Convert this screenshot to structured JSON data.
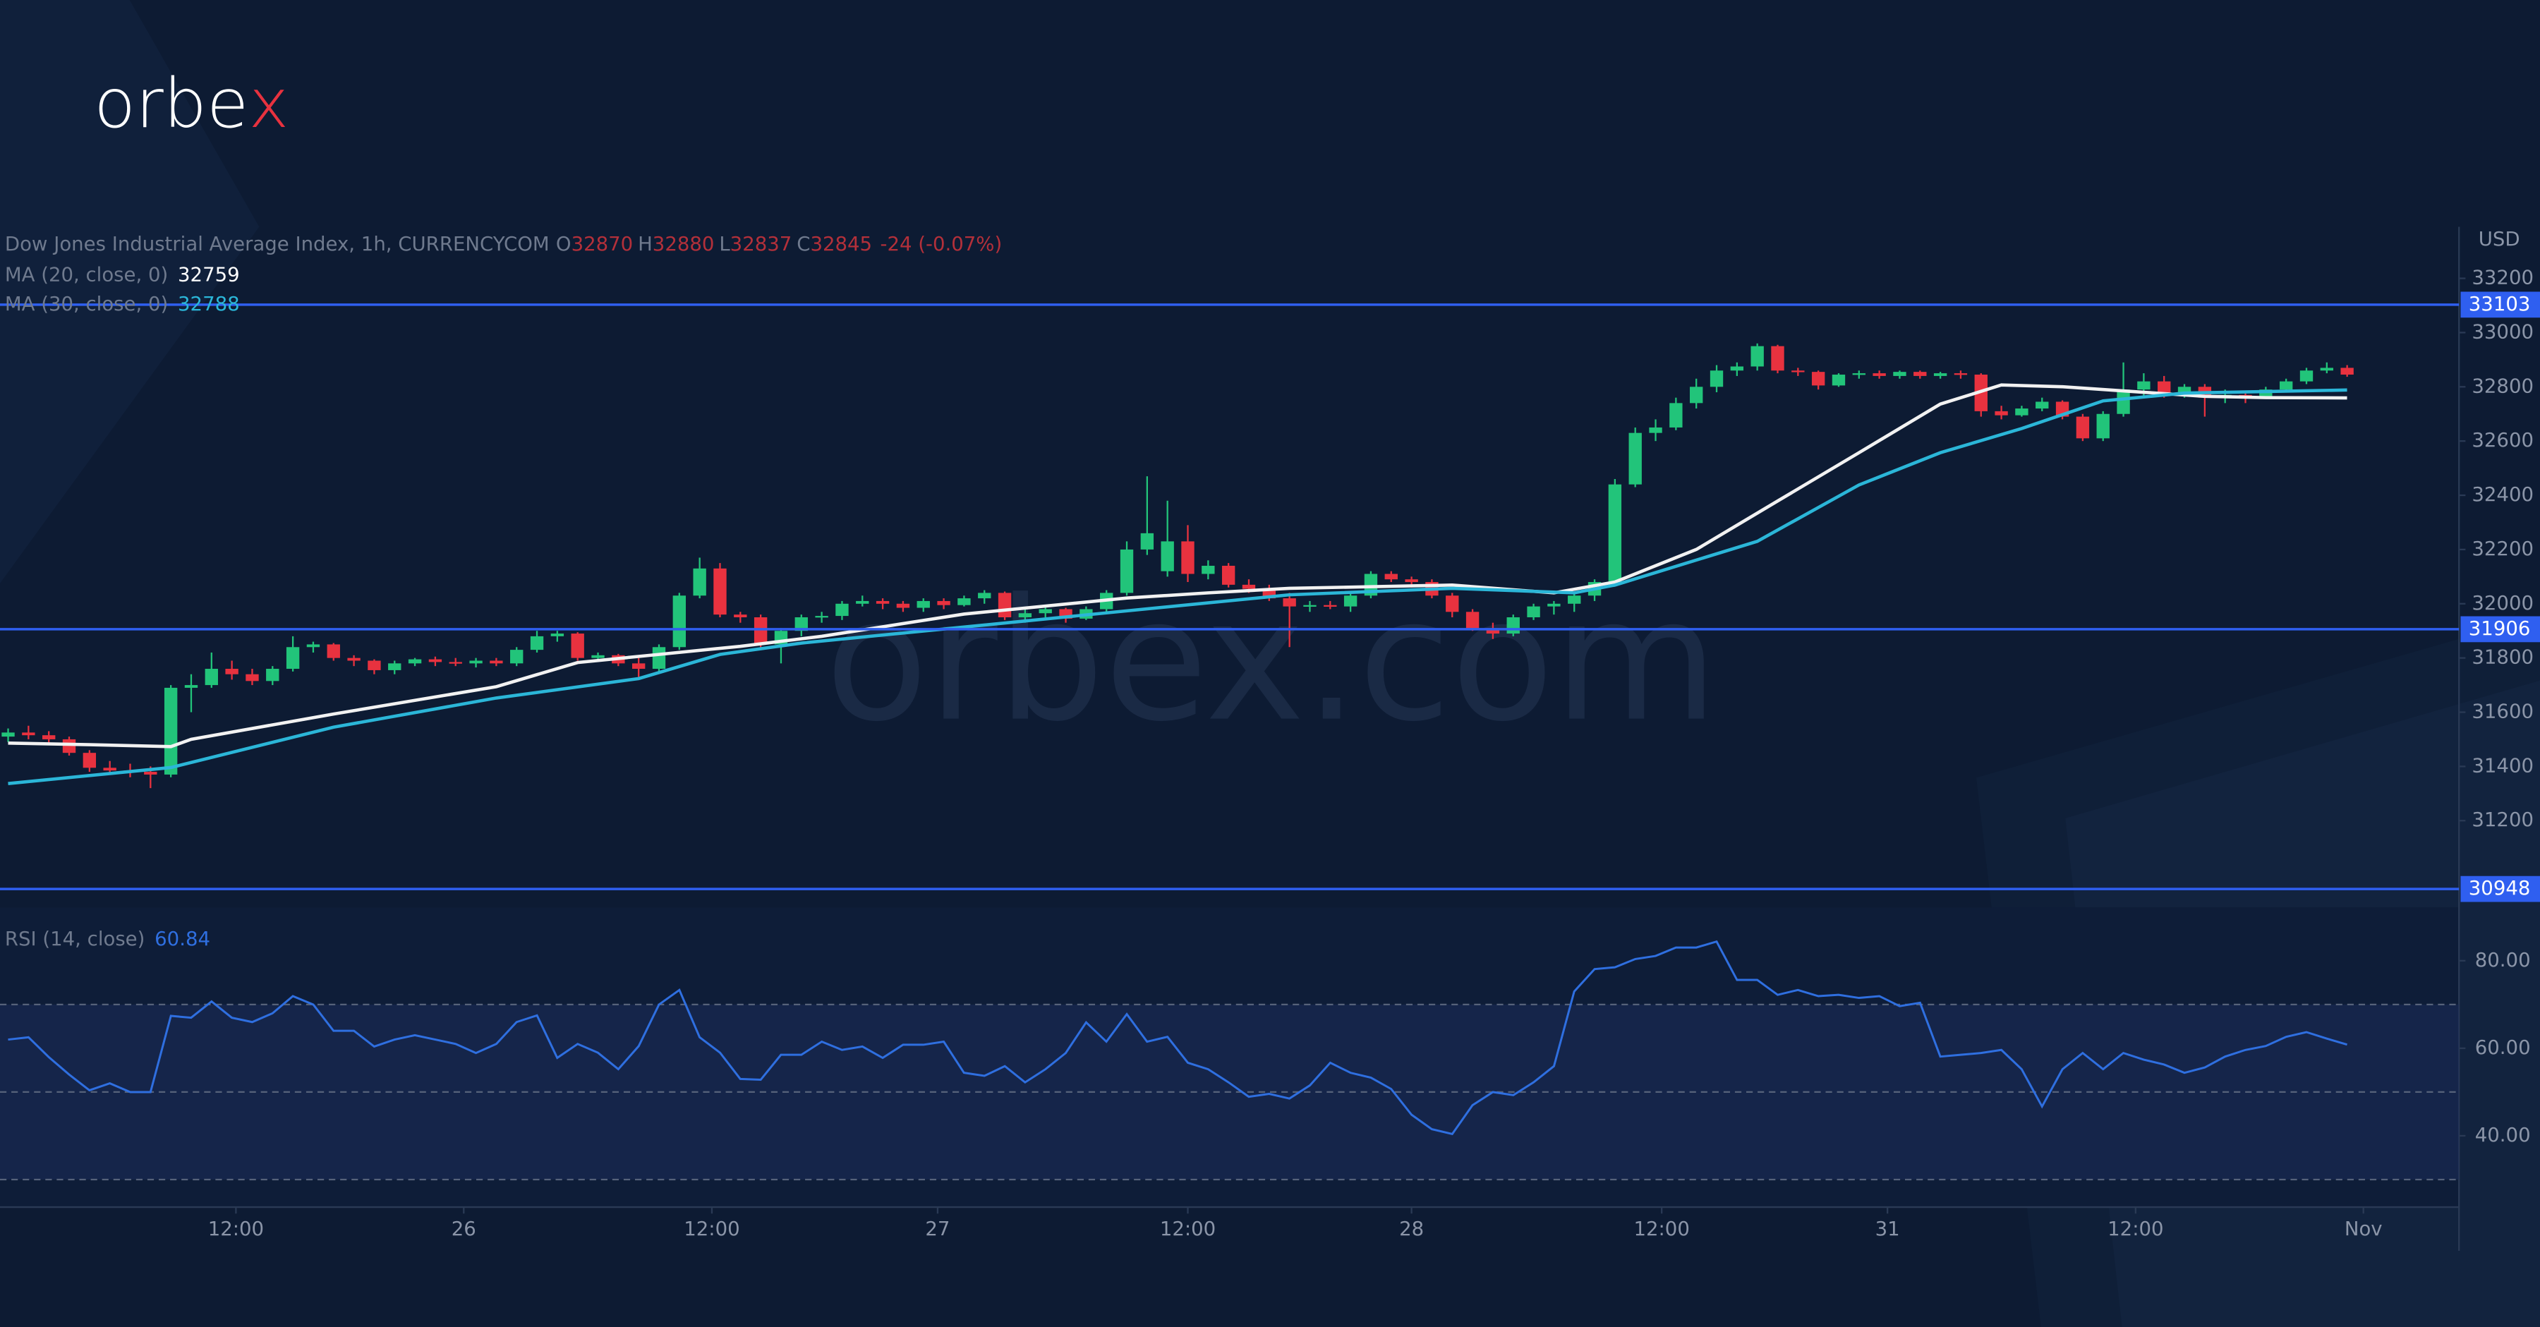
{
  "logo": {
    "text": "orbe",
    "accent": "x"
  },
  "watermark": "orbex.com",
  "chart_data": {
    "type": "candlestick",
    "title": "Dow Jones Industrial Average Index, 1h, CURRENCYCOM",
    "legend_keys": [
      "O",
      "H",
      "L",
      "C"
    ],
    "change": "-24 (-0.07%)",
    "currency": "USD",
    "up_color": "#22c47a",
    "down_color": "#e8323f",
    "xlim": [
      -0.4,
      120.5
    ],
    "xticks": [
      {
        "value": 11.2,
        "label": "12:00"
      },
      {
        "value": 22.4,
        "label": "26"
      },
      {
        "value": 34.6,
        "label": "12:00"
      },
      {
        "value": 45.7,
        "label": "27"
      },
      {
        "value": 58,
        "label": "12:00"
      },
      {
        "value": 69,
        "label": "28"
      },
      {
        "value": 81.3,
        "label": "12:00"
      },
      {
        "value": 92.4,
        "label": "31"
      },
      {
        "value": 104.6,
        "label": "12:00"
      },
      {
        "value": 115.8,
        "label": "Nov"
      }
    ],
    "ylim": [
      30940,
      33390
    ],
    "yticks": [
      31200,
      31400,
      31600,
      31800,
      32000,
      32200,
      32400,
      32600,
      32800,
      33000,
      33200
    ],
    "levels": [
      33103,
      31906,
      30948
    ],
    "level_color": "#2f5ff0",
    "ohlc": [
      [
        31510,
        31540,
        31490,
        31525
      ],
      [
        31525,
        31550,
        31500,
        31515
      ],
      [
        31515,
        31530,
        31480,
        31500
      ],
      [
        31500,
        31510,
        31440,
        31450
      ],
      [
        31450,
        31460,
        31380,
        31395
      ],
      [
        31395,
        31420,
        31370,
        31385
      ],
      [
        31385,
        31410,
        31360,
        31380
      ],
      [
        31380,
        31400,
        31320,
        31370
      ],
      [
        31370,
        31700,
        31360,
        31690
      ],
      [
        31690,
        31740,
        31600,
        31700
      ],
      [
        31700,
        31820,
        31690,
        31760
      ],
      [
        31760,
        31790,
        31720,
        31740
      ],
      [
        31740,
        31760,
        31700,
        31715
      ],
      [
        31715,
        31770,
        31700,
        31760
      ],
      [
        31760,
        31880,
        31750,
        31840
      ],
      [
        31840,
        31860,
        31820,
        31850
      ],
      [
        31850,
        31855,
        31790,
        31800
      ],
      [
        31800,
        31810,
        31770,
        31790
      ],
      [
        31790,
        31795,
        31740,
        31755
      ],
      [
        31755,
        31790,
        31740,
        31780
      ],
      [
        31780,
        31800,
        31770,
        31795
      ],
      [
        31795,
        31805,
        31770,
        31785
      ],
      [
        31785,
        31800,
        31770,
        31780
      ],
      [
        31780,
        31800,
        31765,
        31790
      ],
      [
        31790,
        31800,
        31770,
        31780
      ],
      [
        31780,
        31840,
        31770,
        31830
      ],
      [
        31830,
        31900,
        31820,
        31880
      ],
      [
        31880,
        31900,
        31860,
        31890
      ],
      [
        31890,
        31895,
        31790,
        31800
      ],
      [
        31800,
        31820,
        31790,
        31810
      ],
      [
        31810,
        31815,
        31770,
        31780
      ],
      [
        31780,
        31800,
        31730,
        31760
      ],
      [
        31760,
        31850,
        31750,
        31840
      ],
      [
        31840,
        32040,
        31830,
        32030
      ],
      [
        32030,
        32170,
        32020,
        32130
      ],
      [
        32130,
        32150,
        31950,
        31960
      ],
      [
        31960,
        31970,
        31930,
        31950
      ],
      [
        31950,
        31960,
        31830,
        31850
      ],
      [
        31850,
        31910,
        31780,
        31900
      ],
      [
        31900,
        31960,
        31880,
        31950
      ],
      [
        31950,
        31970,
        31930,
        31955
      ],
      [
        31955,
        32010,
        31940,
        32000
      ],
      [
        32000,
        32030,
        31990,
        32010
      ],
      [
        32010,
        32020,
        31980,
        32000
      ],
      [
        32000,
        32010,
        31970,
        31985
      ],
      [
        31985,
        32020,
        31970,
        32010
      ],
      [
        32010,
        32020,
        31980,
        31995
      ],
      [
        31995,
        32030,
        31990,
        32020
      ],
      [
        32020,
        32050,
        32000,
        32040
      ],
      [
        32040,
        32045,
        31940,
        31950
      ],
      [
        31950,
        31980,
        31930,
        31965
      ],
      [
        31965,
        31990,
        31950,
        31980
      ],
      [
        31980,
        31985,
        31930,
        31945
      ],
      [
        31945,
        31990,
        31940,
        31980
      ],
      [
        31980,
        32050,
        31970,
        32040
      ],
      [
        32040,
        32230,
        32030,
        32200
      ],
      [
        32200,
        32470,
        32180,
        32260
      ],
      [
        32120,
        32380,
        32100,
        32230
      ],
      [
        32230,
        32290,
        32080,
        32110
      ],
      [
        32110,
        32160,
        32090,
        32140
      ],
      [
        32140,
        32150,
        32060,
        32070
      ],
      [
        32070,
        32090,
        32040,
        32055
      ],
      [
        32055,
        32070,
        32010,
        32020
      ],
      [
        32020,
        32040,
        31840,
        31990
      ],
      [
        31990,
        32010,
        31970,
        31995
      ],
      [
        31995,
        32010,
        31980,
        31990
      ],
      [
        31990,
        32040,
        31970,
        32030
      ],
      [
        32030,
        32120,
        32020,
        32110
      ],
      [
        32110,
        32120,
        32080,
        32090
      ],
      [
        32090,
        32100,
        32060,
        32080
      ],
      [
        32080,
        32090,
        32020,
        32030
      ],
      [
        32030,
        32040,
        31950,
        31970
      ],
      [
        31970,
        31980,
        31900,
        31910
      ],
      [
        31910,
        31930,
        31870,
        31890
      ],
      [
        31890,
        31960,
        31880,
        31950
      ],
      [
        31950,
        32000,
        31940,
        31990
      ],
      [
        31990,
        32010,
        31960,
        32000
      ],
      [
        32000,
        32040,
        31970,
        32030
      ],
      [
        32030,
        32090,
        32010,
        32080
      ],
      [
        32080,
        32460,
        32070,
        32440
      ],
      [
        32440,
        32650,
        32430,
        32630
      ],
      [
        32630,
        32680,
        32600,
        32650
      ],
      [
        32650,
        32760,
        32640,
        32740
      ],
      [
        32740,
        32830,
        32720,
        32800
      ],
      [
        32800,
        32880,
        32780,
        32860
      ],
      [
        32860,
        32890,
        32840,
        32875
      ],
      [
        32875,
        32960,
        32860,
        32950
      ],
      [
        32950,
        32955,
        32850,
        32860
      ],
      [
        32860,
        32870,
        32840,
        32855
      ],
      [
        32855,
        32860,
        32790,
        32805
      ],
      [
        32805,
        32850,
        32800,
        32845
      ],
      [
        32845,
        32860,
        32830,
        32850
      ],
      [
        32850,
        32860,
        32830,
        32840
      ],
      [
        32840,
        32860,
        32830,
        32855
      ],
      [
        32855,
        32860,
        32830,
        32840
      ],
      [
        32840,
        32855,
        32830,
        32850
      ],
      [
        32850,
        32860,
        32830,
        32845
      ],
      [
        32845,
        32850,
        32690,
        32710
      ],
      [
        32710,
        32730,
        32680,
        32695
      ],
      [
        32695,
        32730,
        32690,
        32720
      ],
      [
        32720,
        32760,
        32710,
        32745
      ],
      [
        32745,
        32750,
        32680,
        32690
      ],
      [
        32690,
        32700,
        32600,
        32610
      ],
      [
        32610,
        32710,
        32600,
        32700
      ],
      [
        32700,
        32890,
        32690,
        32790
      ],
      [
        32790,
        32850,
        32760,
        32820
      ],
      [
        32820,
        32840,
        32760,
        32770
      ],
      [
        32770,
        32810,
        32760,
        32800
      ],
      [
        32800,
        32810,
        32690,
        32760
      ],
      [
        32760,
        32790,
        32740,
        32770
      ],
      [
        32770,
        32780,
        32740,
        32765
      ],
      [
        32765,
        32800,
        32760,
        32790
      ],
      [
        32790,
        32830,
        32780,
        32820
      ],
      [
        32820,
        32870,
        32810,
        32860
      ],
      [
        32860,
        32890,
        32850,
        32870
      ],
      [
        32870,
        32880,
        32837,
        32845
      ]
    ],
    "ma": [
      {
        "name": "MA (20, close, 0)",
        "color": "#f2f2f2",
        "x": [
          0,
          4,
          8,
          9,
          16,
          24,
          28,
          32,
          36,
          40,
          47,
          55,
          59,
          63,
          71,
          76,
          79,
          83,
          87,
          91,
          95,
          98,
          101,
          105,
          108,
          111,
          115
        ],
        "values": [
          31486,
          31480,
          31473,
          31500,
          31593,
          31694,
          31783,
          31813,
          31843,
          31880,
          31962,
          32021,
          32040,
          32057,
          32069,
          32040,
          32080,
          32200,
          32379,
          32557,
          32736,
          32807,
          32800,
          32780,
          32765,
          32760,
          32759
        ]
      },
      {
        "name": "MA (30, close, 0)",
        "color": "#2bb6d8",
        "x": [
          0,
          8,
          16,
          24,
          31,
          35,
          39,
          47,
          55,
          63,
          71,
          77,
          79,
          86,
          91,
          95,
          99,
          103,
          107,
          115
        ],
        "values": [
          31337,
          31396,
          31545,
          31652,
          31724,
          31813,
          31855,
          31914,
          31974,
          32033,
          32057,
          32040,
          32069,
          32230,
          32438,
          32557,
          32646,
          32748,
          32777,
          32788
        ]
      }
    ],
    "rsi": {
      "name": "RSI (14, close)",
      "color": "#2f6fe0",
      "ylim": [
        23.7,
        92.2
      ],
      "yticks": [
        {
          "value": 80,
          "label": "80.00"
        },
        {
          "value": 60,
          "label": "60.00"
        },
        {
          "value": 40,
          "label": "40.00"
        }
      ],
      "levels": [
        70,
        50,
        30
      ],
      "values": [
        62,
        62.5,
        58,
        54,
        50.4,
        52,
        50,
        50,
        67.4,
        67,
        70.7,
        67,
        66,
        68,
        71.9,
        70,
        64,
        64,
        60.4,
        62,
        63,
        62,
        61,
        58.9,
        61,
        66,
        67.5,
        57.8,
        61,
        59,
        55.2,
        60.5,
        70,
        73.3,
        62.5,
        59,
        53,
        52.8,
        58.5,
        58.5,
        61.5,
        59.6,
        60.4,
        57.8,
        60.8,
        60.8,
        61.5,
        54.4,
        53.7,
        55.9,
        52.2,
        55.2,
        58.9,
        65.9,
        61.5,
        67.8,
        61.5,
        62.6,
        56.7,
        55.2,
        52.2,
        48.9,
        49.6,
        48.5,
        51.5,
        56.7,
        54.4,
        53.3,
        50.7,
        44.8,
        41.5,
        40.4,
        47,
        50,
        49.3,
        52.2,
        55.9,
        73,
        78.1,
        78.5,
        80.4,
        81.1,
        83,
        83,
        84.4,
        75.6,
        75.6,
        72.2,
        73.3,
        71.9,
        72.2,
        71.5,
        71.9,
        69.6,
        70.4,
        58.1,
        58.5,
        58.9,
        59.6,
        55.2,
        46.7,
        55.2,
        58.9,
        55.2,
        58.9,
        57.4,
        56.3,
        54.4,
        55.6,
        58.1,
        59.6,
        60.5,
        62.6,
        63.7,
        62.2,
        60.84
      ]
    }
  }
}
